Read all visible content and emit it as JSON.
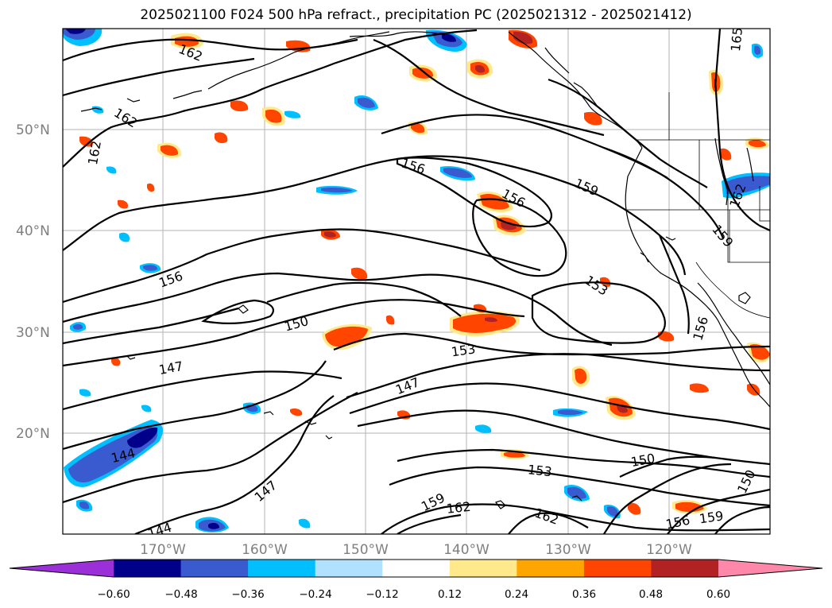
{
  "title": "2025021100 F024 500 hPa refract., precipitation PC (2025021312 - 2025021412)",
  "map": {
    "lat_labels": [
      "50°N",
      "40°N",
      "30°N",
      "20°N"
    ],
    "lon_labels": [
      "170°W",
      "160°W",
      "150°W",
      "140°W",
      "130°W",
      "120°W"
    ],
    "contour_levels": [
      "144",
      "147",
      "150",
      "153",
      "156",
      "159",
      "162",
      "165"
    ],
    "contour_color": "#000000",
    "coastline_color": "#000000",
    "grid": true
  },
  "colorbar": {
    "labels": [
      "−0.60",
      "−0.48",
      "−0.36",
      "−0.24",
      "−0.12",
      "0.12",
      "0.24",
      "0.36",
      "0.48",
      "0.60"
    ],
    "colors": [
      "#9b30d9",
      "#00008b",
      "#3a5bd0",
      "#00bfff",
      "#b0e2ff",
      "#ffffff",
      "#ffe98a",
      "#ffa500",
      "#ff4500",
      "#b22222",
      "#ff88aa"
    ]
  }
}
